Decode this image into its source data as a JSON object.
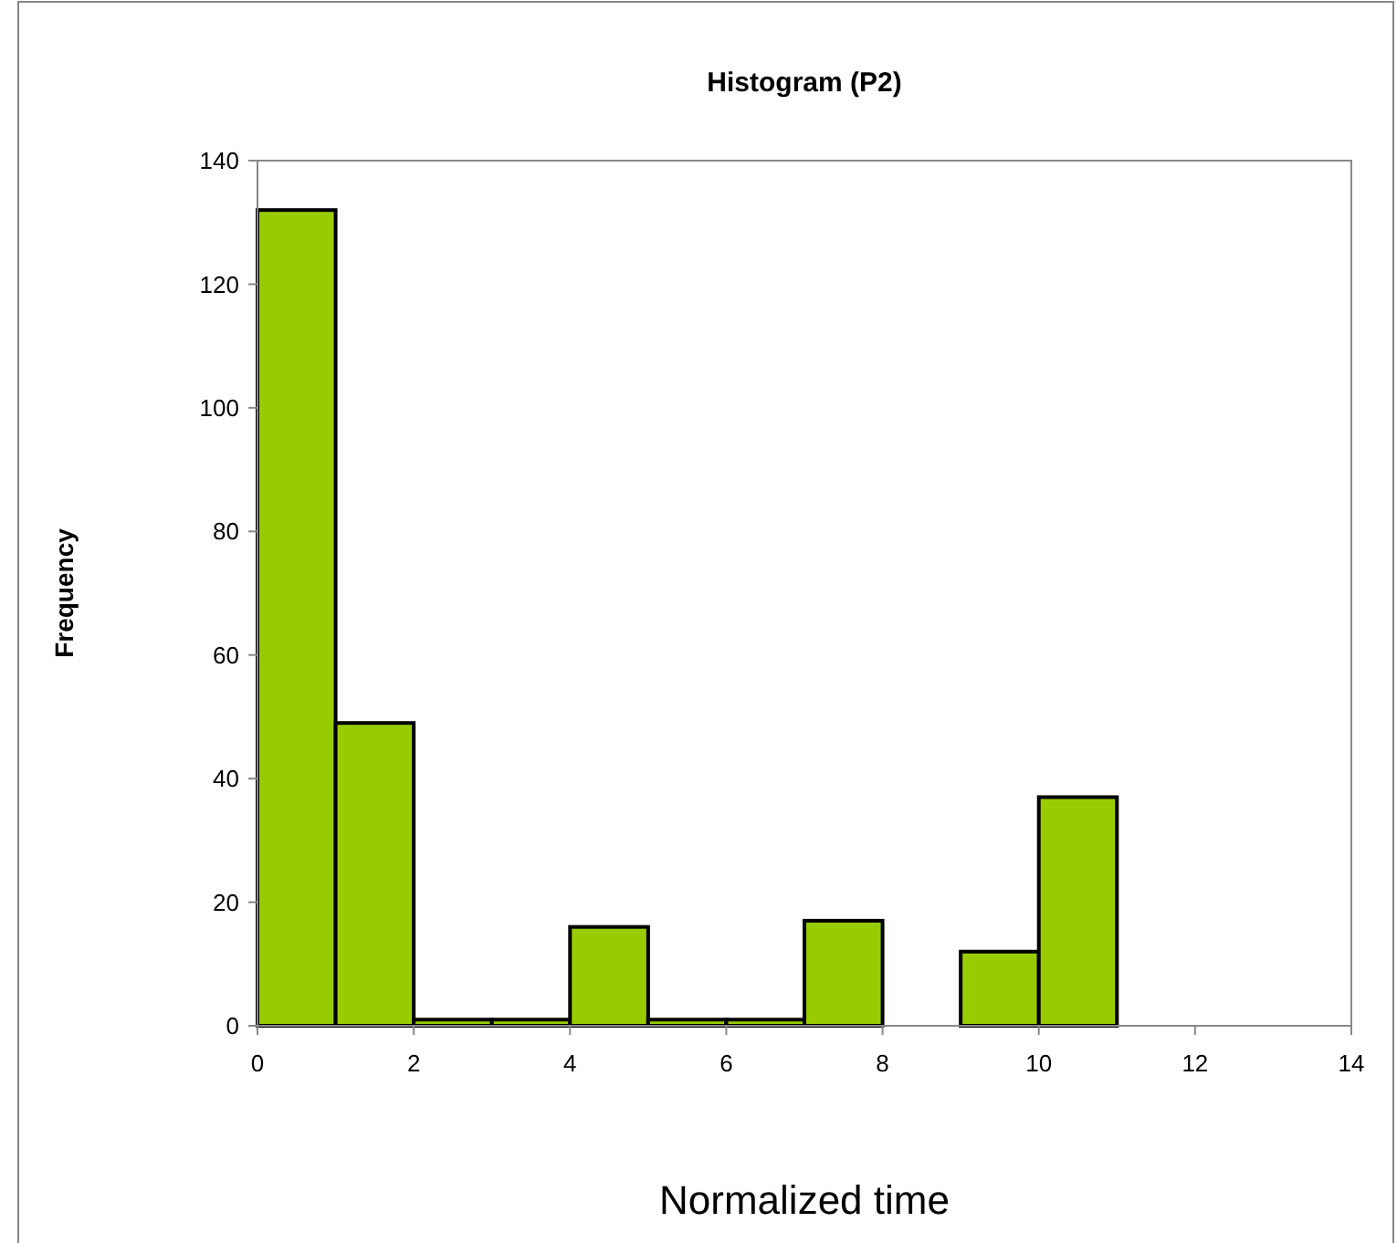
{
  "chart_data": {
    "type": "histogram",
    "title": "Histogram (P2)",
    "xlabel": "Normalized time",
    "ylabel": "Frequency",
    "bins": [
      0,
      1,
      2,
      3,
      4,
      5,
      6,
      7,
      8,
      9,
      10,
      11,
      12,
      13,
      14
    ],
    "values": [
      132,
      49,
      1,
      1,
      16,
      1,
      1,
      17,
      0,
      12,
      37,
      0,
      0,
      0
    ],
    "color": "#99cc00",
    "xlim": [
      0,
      14
    ],
    "xticks": [
      0,
      2,
      4,
      6,
      8,
      10,
      12,
      14
    ],
    "ylim": [
      0,
      140
    ],
    "yticks": [
      0,
      20,
      40,
      60,
      80,
      100,
      120,
      140
    ],
    "grid": false
  }
}
